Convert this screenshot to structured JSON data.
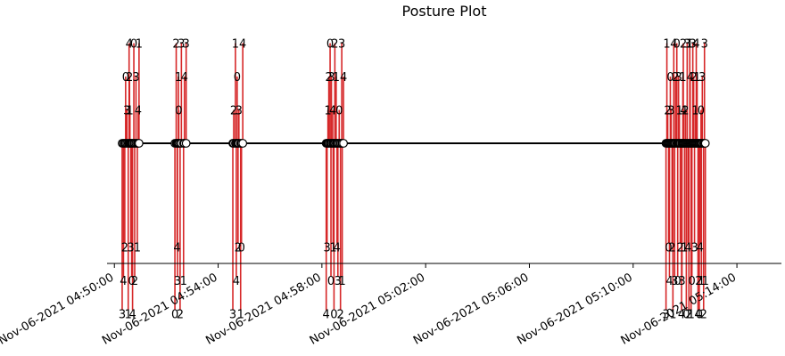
{
  "chart_data": {
    "type": "timeline",
    "title": "Posture Plot",
    "x_axis": {
      "type": "time",
      "range": [
        "Nov-06-2021 04:49:43",
        "Nov-06-2021 05:15:43"
      ],
      "ticks": [
        "Nov-06-2021 04:50:00",
        "Nov-06-2021 04:54:00",
        "Nov-06-2021 04:58:00",
        "Nov-06-2021 05:02:00",
        "Nov-06-2021 05:06:00",
        "Nov-06-2021 05:10:00",
        "Nov-06-2021 05:14:00"
      ]
    },
    "colors": {
      "stem": "#d62728",
      "baseline": "#000000",
      "marker_fill": "#ffffff",
      "marker_edge": "#000000"
    },
    "events": [
      {
        "time": "04:50:18",
        "label": "3",
        "level": -5
      },
      {
        "time": "04:50:21",
        "label": "4",
        "level": -4
      },
      {
        "time": "04:50:24",
        "label": "2",
        "level": -3
      },
      {
        "time": "04:50:26",
        "label": "0",
        "level": 2
      },
      {
        "time": "04:50:29",
        "label": "3",
        "level": 1
      },
      {
        "time": "04:50:32",
        "label": "1",
        "level": -5
      },
      {
        "time": "04:50:34",
        "label": "4",
        "level": 3
      },
      {
        "time": "04:50:35",
        "label": "2",
        "level": 2
      },
      {
        "time": "04:50:36",
        "label": "1",
        "level": 1
      },
      {
        "time": "04:50:38",
        "label": "3",
        "level": -3
      },
      {
        "time": "04:50:40",
        "label": "0",
        "level": -4
      },
      {
        "time": "04:50:42",
        "label": "4",
        "level": -5
      },
      {
        "time": "04:50:45",
        "label": "0",
        "level": 3
      },
      {
        "time": "04:50:47",
        "label": "2",
        "level": -4
      },
      {
        "time": "04:50:50",
        "label": "3",
        "level": 2
      },
      {
        "time": "04:50:53",
        "label": "1",
        "level": -3
      },
      {
        "time": "04:50:55",
        "label": "4",
        "level": 1
      },
      {
        "time": "04:50:57",
        "label": "1",
        "level": 3
      },
      {
        "time": "04:52:20",
        "label": "0",
        "level": -5
      },
      {
        "time": "04:52:23",
        "label": "2",
        "level": 3
      },
      {
        "time": "04:52:25",
        "label": "4",
        "level": -3
      },
      {
        "time": "04:52:26",
        "label": "3",
        "level": -4
      },
      {
        "time": "04:52:28",
        "label": "1",
        "level": 2
      },
      {
        "time": "04:52:29",
        "label": "0",
        "level": 1
      },
      {
        "time": "04:52:32",
        "label": "2",
        "level": -5
      },
      {
        "time": "04:52:35",
        "label": "3",
        "level": 3
      },
      {
        "time": "04:52:40",
        "label": "1",
        "level": -4
      },
      {
        "time": "04:52:42",
        "label": "4",
        "level": 2
      },
      {
        "time": "04:52:46",
        "label": "3",
        "level": 3
      },
      {
        "time": "04:54:34",
        "label": "3",
        "level": -5
      },
      {
        "time": "04:54:36",
        "label": "2",
        "level": 1
      },
      {
        "time": "04:54:40",
        "label": "1",
        "level": 3
      },
      {
        "time": "04:54:42",
        "label": "4",
        "level": -4
      },
      {
        "time": "04:54:44",
        "label": "0",
        "level": 2
      },
      {
        "time": "04:54:46",
        "label": "2",
        "level": -3
      },
      {
        "time": "04:54:48",
        "label": "3",
        "level": 1
      },
      {
        "time": "04:54:52",
        "label": "1",
        "level": -5
      },
      {
        "time": "04:54:54",
        "label": "0",
        "level": -3
      },
      {
        "time": "04:54:57",
        "label": "4",
        "level": 3
      },
      {
        "time": "04:58:10",
        "label": "4",
        "level": -5
      },
      {
        "time": "04:58:12",
        "label": "3",
        "level": -3
      },
      {
        "time": "04:58:14",
        "label": "1",
        "level": 1
      },
      {
        "time": "04:58:16",
        "label": "2",
        "level": 2
      },
      {
        "time": "04:58:19",
        "label": "0",
        "level": 3
      },
      {
        "time": "04:58:21",
        "label": "0",
        "level": -4
      },
      {
        "time": "04:58:22",
        "label": "3",
        "level": 2
      },
      {
        "time": "04:58:25",
        "label": "4",
        "level": 1
      },
      {
        "time": "04:58:26",
        "label": "1",
        "level": -3
      },
      {
        "time": "04:58:28",
        "label": "0",
        "level": -5
      },
      {
        "time": "04:58:30",
        "label": "2",
        "level": 3
      },
      {
        "time": "04:58:33",
        "label": "1",
        "level": 2
      },
      {
        "time": "04:58:35",
        "label": "4",
        "level": -3
      },
      {
        "time": "04:58:37",
        "label": "3",
        "level": -4
      },
      {
        "time": "04:58:40",
        "label": "0",
        "level": 1
      },
      {
        "time": "04:58:43",
        "label": "2",
        "level": -5
      },
      {
        "time": "04:58:46",
        "label": "3",
        "level": 3
      },
      {
        "time": "04:58:47",
        "label": "1",
        "level": -4
      },
      {
        "time": "04:58:50",
        "label": "4",
        "level": 2
      },
      {
        "time": "05:11:16",
        "label": "3",
        "level": -5
      },
      {
        "time": "05:11:18",
        "label": "1",
        "level": 3
      },
      {
        "time": "05:11:20",
        "label": "2",
        "level": 1
      },
      {
        "time": "05:11:22",
        "label": "0",
        "level": -3
      },
      {
        "time": "05:11:24",
        "label": "4",
        "level": -4
      },
      {
        "time": "05:11:26",
        "label": "0",
        "level": 2
      },
      {
        "time": "05:11:28",
        "label": "3",
        "level": 1
      },
      {
        "time": "05:11:30",
        "label": "2",
        "level": -3
      },
      {
        "time": "05:11:32",
        "label": "1",
        "level": -5
      },
      {
        "time": "05:11:34",
        "label": "4",
        "level": 3
      },
      {
        "time": "05:11:36",
        "label": "3",
        "level": -4
      },
      {
        "time": "05:11:38",
        "label": "2",
        "level": 2
      },
      {
        "time": "05:11:41",
        "label": "0",
        "level": 3
      },
      {
        "time": "05:11:43",
        "label": "0",
        "level": -4
      },
      {
        "time": "05:11:45",
        "label": "3",
        "level": 2
      },
      {
        "time": "05:11:47",
        "label": "1",
        "level": 1
      },
      {
        "time": "05:11:49",
        "label": "2",
        "level": -3
      },
      {
        "time": "05:11:52",
        "label": "4",
        "level": -5
      },
      {
        "time": "05:11:53",
        "label": "3",
        "level": -4
      },
      {
        "time": "05:11:55",
        "label": "1",
        "level": 2
      },
      {
        "time": "05:11:56",
        "label": "2",
        "level": 3
      },
      {
        "time": "05:11:57",
        "label": "4",
        "level": 1
      },
      {
        "time": "05:11:59",
        "label": "1",
        "level": -3
      },
      {
        "time": "05:12:01",
        "label": "2",
        "level": 1
      },
      {
        "time": "05:12:03",
        "label": "0",
        "level": -5
      },
      {
        "time": "05:12:05",
        "label": "3",
        "level": 3
      },
      {
        "time": "05:12:07",
        "label": "4",
        "level": -3
      },
      {
        "time": "05:12:09",
        "label": "2",
        "level": -5
      },
      {
        "time": "05:12:11",
        "label": "1",
        "level": 3
      },
      {
        "time": "05:12:12",
        "label": "4",
        "level": 2
      },
      {
        "time": "05:12:14",
        "label": "1",
        "level": -5
      },
      {
        "time": "05:12:16",
        "label": "0",
        "level": -4
      },
      {
        "time": "05:12:18",
        "label": "3",
        "level": 3
      },
      {
        "time": "05:12:20",
        "label": "2",
        "level": 2
      },
      {
        "time": "05:12:22",
        "label": "3",
        "level": -3
      },
      {
        "time": "05:12:24",
        "label": "1",
        "level": 1
      },
      {
        "time": "05:12:26",
        "label": "4",
        "level": 3
      },
      {
        "time": "05:12:28",
        "label": "1",
        "level": 2
      },
      {
        "time": "05:12:30",
        "label": "4",
        "level": -5
      },
      {
        "time": "05:12:32",
        "label": "2",
        "level": -4
      },
      {
        "time": "05:12:33",
        "label": "0",
        "level": -5
      },
      {
        "time": "05:12:35",
        "label": "4",
        "level": -3
      },
      {
        "time": "05:12:37",
        "label": "0",
        "level": 1
      },
      {
        "time": "05:12:38",
        "label": "1",
        "level": -4
      },
      {
        "time": "05:12:40",
        "label": "3",
        "level": 2
      },
      {
        "time": "05:12:43",
        "label": "2",
        "level": -5
      },
      {
        "time": "05:12:45",
        "label": "3",
        "level": 3
      },
      {
        "time": "05:12:47",
        "label": "1",
        "level": -4
      }
    ]
  }
}
